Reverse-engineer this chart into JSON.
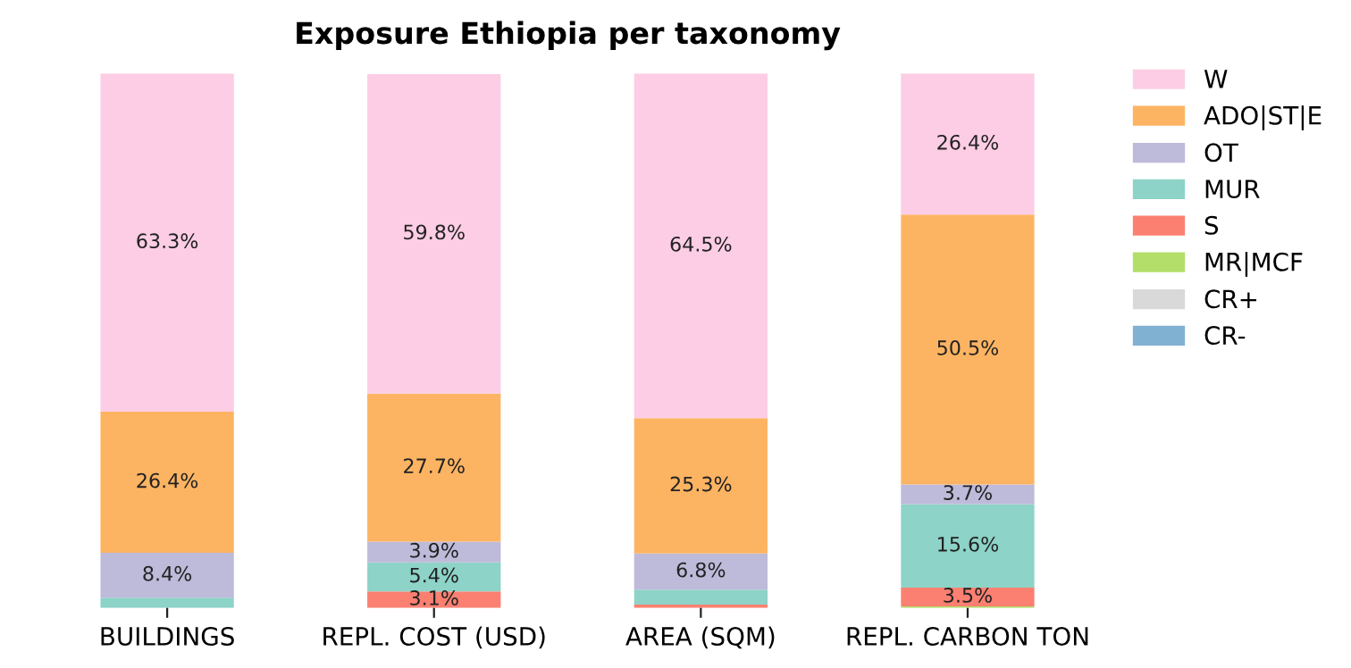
{
  "chart_data": {
    "type": "bar",
    "stacked": true,
    "title": "Exposure Ethiopia per taxonomy",
    "categories": [
      "BUILDINGS",
      "REPL. COST (USD)",
      "AREA (SQM)",
      "REPL. CARBON TON"
    ],
    "series": [
      {
        "name": "CR-",
        "color": "#80b1d3",
        "values": [
          0,
          0,
          0,
          0
        ],
        "value_labels": [
          null,
          null,
          null,
          null
        ]
      },
      {
        "name": "CR+",
        "color": "#d9d9d9",
        "values": [
          0,
          0,
          0,
          0
        ],
        "value_labels": [
          null,
          null,
          null,
          null
        ]
      },
      {
        "name": "MR|MCF",
        "color": "#b3de69",
        "values": [
          0,
          0,
          0,
          0.3
        ],
        "value_labels": [
          null,
          null,
          null,
          null
        ]
      },
      {
        "name": "S",
        "color": "#fb8072",
        "values": [
          0,
          3.1,
          0.6,
          3.5
        ],
        "value_labels": [
          null,
          "3.1%",
          null,
          "3.5%"
        ]
      },
      {
        "name": "MUR",
        "color": "#8dd3c7",
        "values": [
          1.9,
          5.4,
          2.8,
          15.6
        ],
        "value_labels": [
          null,
          "5.4%",
          null,
          "15.6%"
        ]
      },
      {
        "name": "OT",
        "color": "#bebada",
        "values": [
          8.4,
          3.9,
          6.8,
          3.7
        ],
        "value_labels": [
          "8.4%",
          "3.9%",
          "6.8%",
          "3.7%"
        ]
      },
      {
        "name": "ADO|ST|E",
        "color": "#fdb462",
        "values": [
          26.4,
          27.7,
          25.3,
          50.5
        ],
        "value_labels": [
          "26.4%",
          "27.7%",
          "25.3%",
          "50.5%"
        ]
      },
      {
        "name": "W",
        "color": "#fccde5",
        "values": [
          63.3,
          59.8,
          64.5,
          26.4
        ],
        "value_labels": [
          "63.3%",
          "59.8%",
          "64.5%",
          "26.4%"
        ]
      }
    ],
    "legend": "right",
    "grid": false
  }
}
